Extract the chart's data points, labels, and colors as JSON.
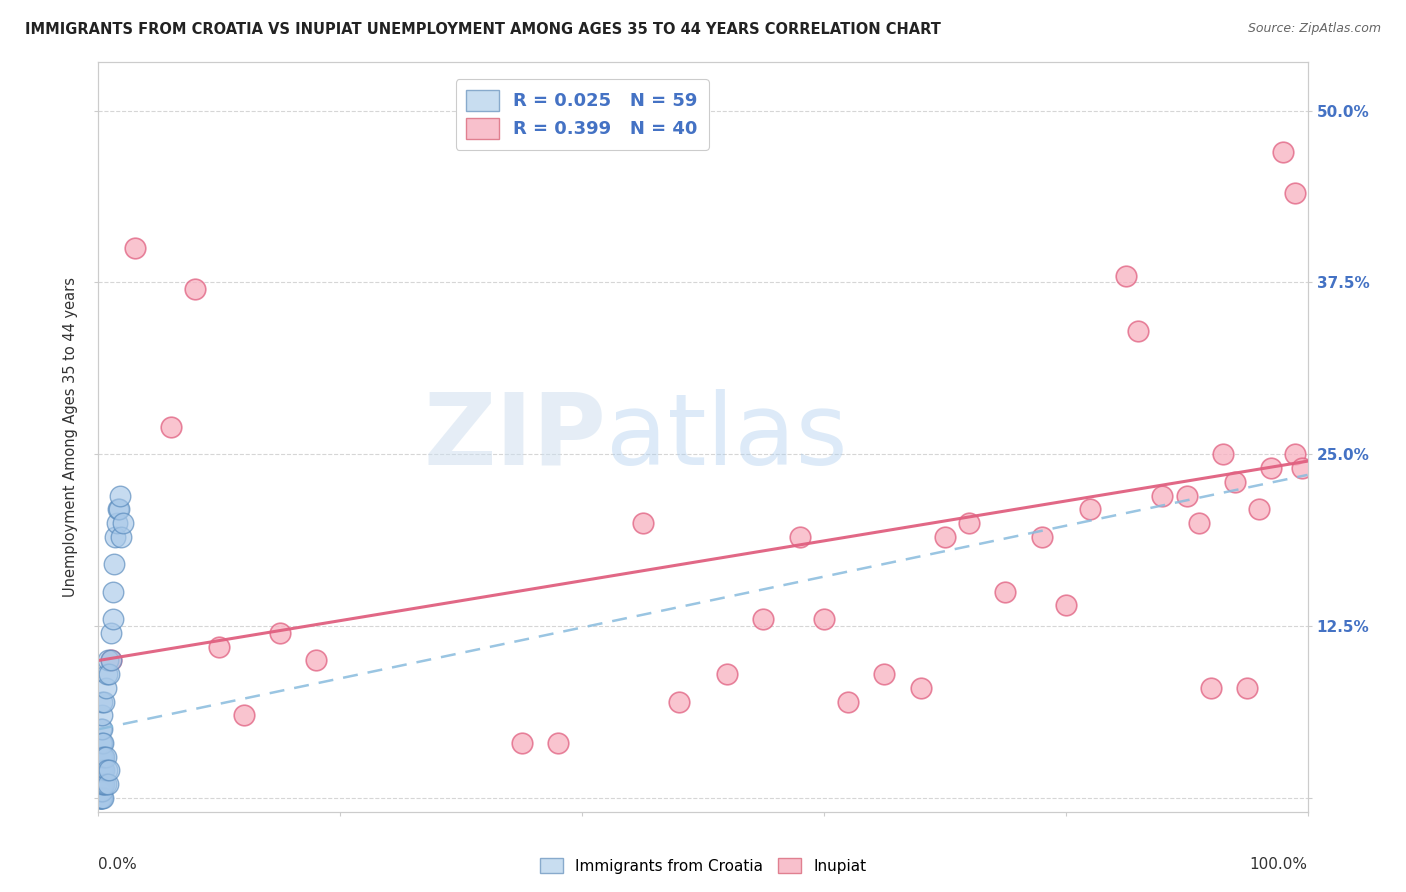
{
  "title": "IMMIGRANTS FROM CROATIA VS INUPIAT UNEMPLOYMENT AMONG AGES 35 TO 44 YEARS CORRELATION CHART",
  "source": "Source: ZipAtlas.com",
  "ylabel": "Unemployment Among Ages 35 to 44 years",
  "xlim": [
    0,
    1.0
  ],
  "ylim": [
    -0.01,
    0.535
  ],
  "yticks": [
    0.0,
    0.125,
    0.25,
    0.375,
    0.5
  ],
  "ytick_labels": [
    "",
    "12.5%",
    "25.0%",
    "37.5%",
    "50.0%"
  ],
  "croatia_R": 0.025,
  "croatia_N": 59,
  "inupiat_R": 0.399,
  "inupiat_N": 40,
  "legend_label_1": "Immigrants from Croatia",
  "legend_label_2": "Inupiat",
  "watermark_zip": "ZIP",
  "watermark_atlas": "atlas",
  "blue_scatter_color": "#a8c8e8",
  "blue_edge_color": "#5588bb",
  "blue_line_color": "#88bbdd",
  "pink_scatter_color": "#f8b0c0",
  "pink_edge_color": "#e06080",
  "pink_line_color": "#e06080",
  "background_color": "#ffffff",
  "grid_color": "#cccccc",
  "tick_color": "#4472c4",
  "croatia_x": [
    0.001,
    0.001,
    0.001,
    0.001,
    0.001,
    0.001,
    0.001,
    0.001,
    0.001,
    0.001,
    0.002,
    0.002,
    0.002,
    0.002,
    0.002,
    0.002,
    0.002,
    0.002,
    0.002,
    0.002,
    0.003,
    0.003,
    0.003,
    0.003,
    0.003,
    0.003,
    0.003,
    0.003,
    0.003,
    0.004,
    0.004,
    0.004,
    0.004,
    0.004,
    0.005,
    0.005,
    0.005,
    0.005,
    0.006,
    0.006,
    0.006,
    0.007,
    0.007,
    0.008,
    0.008,
    0.009,
    0.009,
    0.01,
    0.01,
    0.012,
    0.012,
    0.013,
    0.014,
    0.015,
    0.016,
    0.017,
    0.018,
    0.019,
    0.02
  ],
  "croatia_y": [
    0.0,
    0.0,
    0.005,
    0.005,
    0.01,
    0.01,
    0.01,
    0.01,
    0.02,
    0.02,
    0.0,
    0.0,
    0.005,
    0.01,
    0.01,
    0.02,
    0.02,
    0.03,
    0.04,
    0.05,
    0.0,
    0.005,
    0.01,
    0.02,
    0.03,
    0.04,
    0.05,
    0.06,
    0.07,
    0.0,
    0.01,
    0.02,
    0.03,
    0.04,
    0.01,
    0.02,
    0.03,
    0.07,
    0.01,
    0.03,
    0.08,
    0.02,
    0.09,
    0.01,
    0.1,
    0.02,
    0.09,
    0.1,
    0.12,
    0.13,
    0.15,
    0.17,
    0.19,
    0.2,
    0.21,
    0.21,
    0.22,
    0.19,
    0.2
  ],
  "inupiat_x": [
    0.01,
    0.03,
    0.06,
    0.08,
    0.1,
    0.12,
    0.15,
    0.18,
    0.35,
    0.38,
    0.45,
    0.48,
    0.52,
    0.55,
    0.58,
    0.6,
    0.62,
    0.65,
    0.68,
    0.7,
    0.72,
    0.75,
    0.78,
    0.8,
    0.82,
    0.85,
    0.86,
    0.88,
    0.9,
    0.91,
    0.92,
    0.93,
    0.94,
    0.95,
    0.96,
    0.97,
    0.98,
    0.99,
    0.99,
    0.995
  ],
  "inupiat_y": [
    0.1,
    0.4,
    0.27,
    0.37,
    0.11,
    0.06,
    0.12,
    0.1,
    0.04,
    0.04,
    0.2,
    0.07,
    0.09,
    0.13,
    0.19,
    0.13,
    0.07,
    0.09,
    0.08,
    0.19,
    0.2,
    0.15,
    0.19,
    0.14,
    0.21,
    0.38,
    0.34,
    0.22,
    0.22,
    0.2,
    0.08,
    0.25,
    0.23,
    0.08,
    0.21,
    0.24,
    0.47,
    0.44,
    0.25,
    0.24
  ],
  "inupiat_line_x0": 0.0,
  "inupiat_line_y0": 0.1,
  "inupiat_line_x1": 1.0,
  "inupiat_line_y1": 0.245,
  "croatia_line_x0": 0.0,
  "croatia_line_y0": 0.05,
  "croatia_line_x1": 1.0,
  "croatia_line_y1": 0.235
}
